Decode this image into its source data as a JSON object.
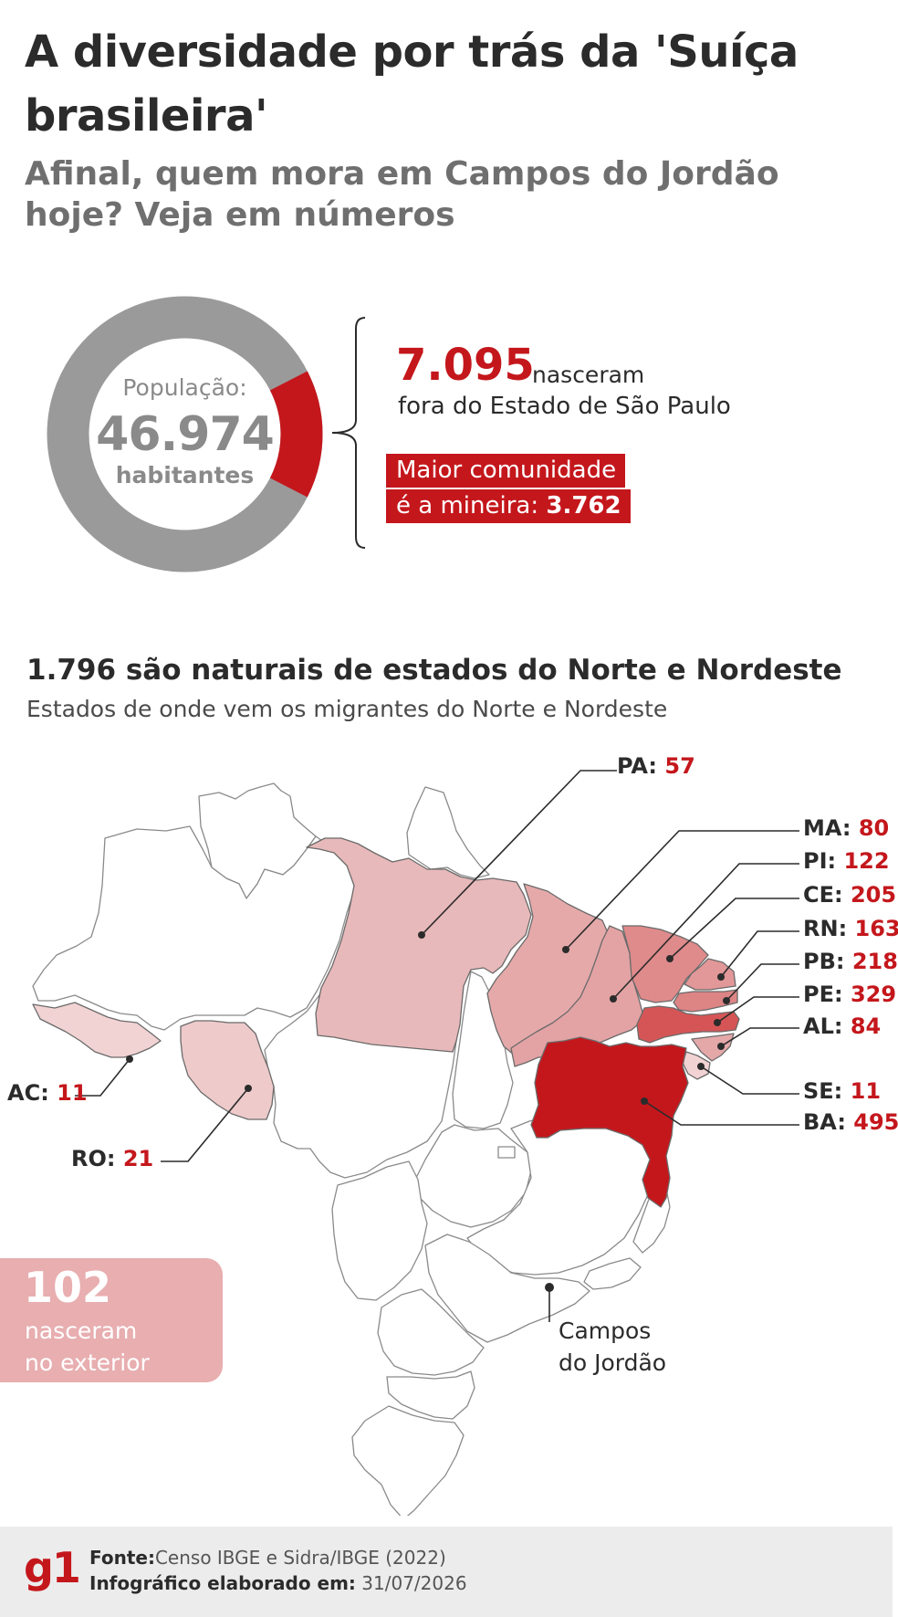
{
  "header": {
    "title": "A diversidade por trás da 'Suíça brasileira'",
    "subtitle": "Afinal, quem mora em Campos do Jordão hoje? Veja em números"
  },
  "population": {
    "label": "População:",
    "value": "46.974",
    "unit": "habitantes",
    "total": 46974,
    "born_outside": 7095,
    "ring_color": "#9a9a9a",
    "highlight_color": "#c4171c"
  },
  "born_outside": {
    "number": "7.095",
    "word": "nasceram",
    "line2": "fora do Estado de São Paulo",
    "community_line1": "Maior comunidade",
    "community_line2_prefix": "é a mineira: ",
    "community_line2_value": "3.762"
  },
  "section": {
    "title": "1.796 são naturais de estados do Norte e Nordeste",
    "subtitle": "Estados de onde vem os migrantes do Norte e Nordeste"
  },
  "states": [
    {
      "code": "PA",
      "label": "PA:",
      "value": "57",
      "color": "#e8b9ba"
    },
    {
      "code": "MA",
      "label": "MA:",
      "value": "80",
      "color": "#e5a9aa"
    },
    {
      "code": "PI",
      "label": "PI:",
      "value": "122",
      "color": "#e3a3a4"
    },
    {
      "code": "CE",
      "label": "CE:",
      "value": "205",
      "color": "#df8a8b"
    },
    {
      "code": "RN",
      "label": "RN:",
      "value": "163",
      "color": "#e29798"
    },
    {
      "code": "PB",
      "label": "PB:",
      "value": "218",
      "color": "#dd8485"
    },
    {
      "code": "PE",
      "label": "PE:",
      "value": "329",
      "color": "#d55556"
    },
    {
      "code": "AL",
      "label": "AL:",
      "value": "84",
      "color": "#e5a8a9"
    },
    {
      "code": "SE",
      "label": "SE:",
      "value": "11",
      "color": "#f2d3d4"
    },
    {
      "code": "BA",
      "label": "BA:",
      "value": "495",
      "color": "#c4171c"
    },
    {
      "code": "AC",
      "label": "AC:",
      "value": "11",
      "color": "#f2d3d4"
    },
    {
      "code": "RO",
      "label": "RO:",
      "value": "21",
      "color": "#eecacb"
    }
  ],
  "foreign": {
    "number": "102",
    "line1": "nasceram",
    "line2": "no exterior"
  },
  "city": {
    "line1": "Campos",
    "line2": "do Jordão"
  },
  "footer": {
    "logo": "g1",
    "source_label": "Fonte:",
    "source_value": "Censo IBGE e Sidra/IBGE (2022)",
    "date_label": "Infográfico elaborado em:",
    "date_value": "31/07/2026"
  }
}
